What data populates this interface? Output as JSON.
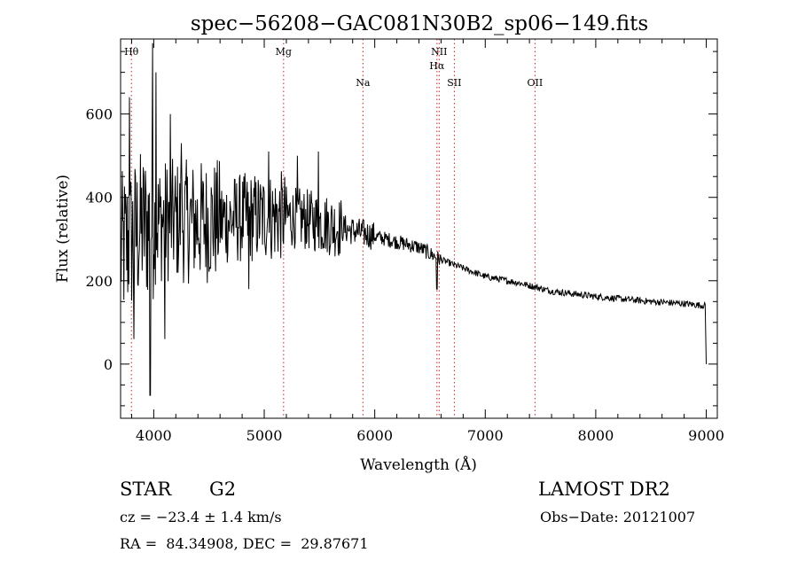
{
  "chart_data": {
    "type": "line",
    "title": "spec−56208−GAC081N30B2_sp06−149.fits",
    "xlabel": "Wavelength (Å)",
    "ylabel": "Flux (relative)",
    "xlim": [
      3700,
      9100
    ],
    "ylim": [
      -130,
      780
    ],
    "xticks": [
      4000,
      5000,
      6000,
      7000,
      8000,
      9000
    ],
    "yticks": [
      0,
      200,
      400,
      600
    ],
    "line_color": "#000000",
    "marker_color": "#cc2222",
    "spectral_lines": [
      {
        "label": "Hθ",
        "x": 3798,
        "row": 0
      },
      {
        "label": "Mg",
        "x": 5175,
        "row": 0
      },
      {
        "label": "Na",
        "x": 5893,
        "row": 2
      },
      {
        "label": "NII",
        "x": 6583,
        "row": 0
      },
      {
        "label": "Hα",
        "x": 6563,
        "row": 1
      },
      {
        "label": "SII",
        "x": 6720,
        "row": 2
      },
      {
        "label": "OII",
        "x": 7450,
        "row": 2
      }
    ],
    "continuum": [
      [
        3700,
        270
      ],
      [
        3900,
        330
      ],
      [
        4100,
        345
      ],
      [
        4400,
        340
      ],
      [
        4800,
        350
      ],
      [
        5200,
        355
      ],
      [
        5500,
        340
      ],
      [
        5800,
        320
      ],
      [
        6100,
        300
      ],
      [
        6400,
        280
      ],
      [
        6600,
        250
      ],
      [
        6800,
        230
      ],
      [
        7000,
        210
      ],
      [
        7300,
        195
      ],
      [
        7600,
        175
      ],
      [
        8000,
        162
      ],
      [
        8500,
        150
      ],
      [
        8800,
        145
      ],
      [
        8990,
        140
      ]
    ],
    "features": [
      {
        "x": 3780,
        "y": 640
      },
      {
        "x": 3820,
        "y": 60
      },
      {
        "x": 3968,
        "y": -75
      },
      {
        "x": 3990,
        "y": 770
      },
      {
        "x": 4020,
        "y": 700
      },
      {
        "x": 4101,
        "y": 60
      },
      {
        "x": 4150,
        "y": 600
      },
      {
        "x": 4250,
        "y": 530
      },
      {
        "x": 4861,
        "y": 180
      },
      {
        "x": 5040,
        "y": 510
      },
      {
        "x": 5300,
        "y": 500
      },
      {
        "x": 5490,
        "y": 510
      },
      {
        "x": 6563,
        "y": 180
      },
      {
        "x": 9000,
        "y": 0
      }
    ]
  },
  "footer": {
    "object_type": "STAR",
    "subclass": "G2",
    "survey": "LAMOST DR2",
    "redshift": "cz = −23.4 ± 1.4 km/s",
    "obs_date": "Obs−Date: 20121007",
    "coords": "RA =  84.34908, DEC =  29.87671"
  }
}
